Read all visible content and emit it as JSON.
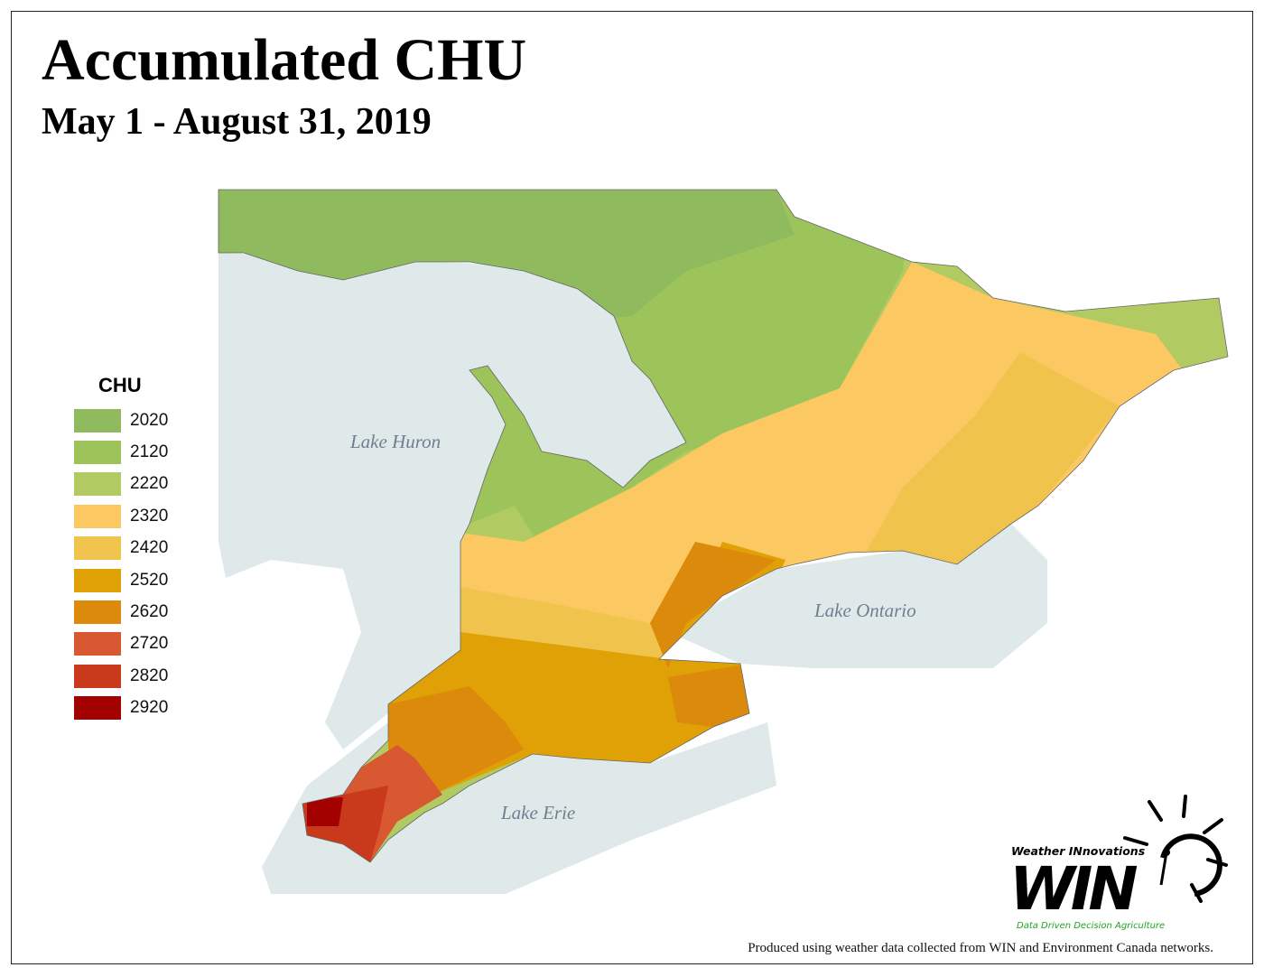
{
  "title": "Accumulated CHU",
  "subtitle": "May 1 - August 31, 2019",
  "legend": {
    "title": "CHU",
    "items": [
      {
        "label": "2020",
        "color": "#8fbb5e"
      },
      {
        "label": "2120",
        "color": "#9dc45b"
      },
      {
        "label": "2220",
        "color": "#b2ca62"
      },
      {
        "label": "2320",
        "color": "#fcc862"
      },
      {
        "label": "2420",
        "color": "#f0c44c"
      },
      {
        "label": "2520",
        "color": "#e0a106"
      },
      {
        "label": "2620",
        "color": "#db8a0b"
      },
      {
        "label": "2720",
        "color": "#d85832"
      },
      {
        "label": "2820",
        "color": "#c9391b"
      },
      {
        "label": "2920",
        "color": "#a30000"
      }
    ]
  },
  "lakes": {
    "huron": "Lake Huron",
    "ontario": "Lake Ontario",
    "erie": "Lake Erie"
  },
  "water_color": "#dfe9e9",
  "logo": {
    "name": "Weather INnovations",
    "acronym": "WIN",
    "tagline": "Data Driven Decision Agriculture"
  },
  "credit": "Produced using weather data collected from WIN and Environment Canada networks."
}
